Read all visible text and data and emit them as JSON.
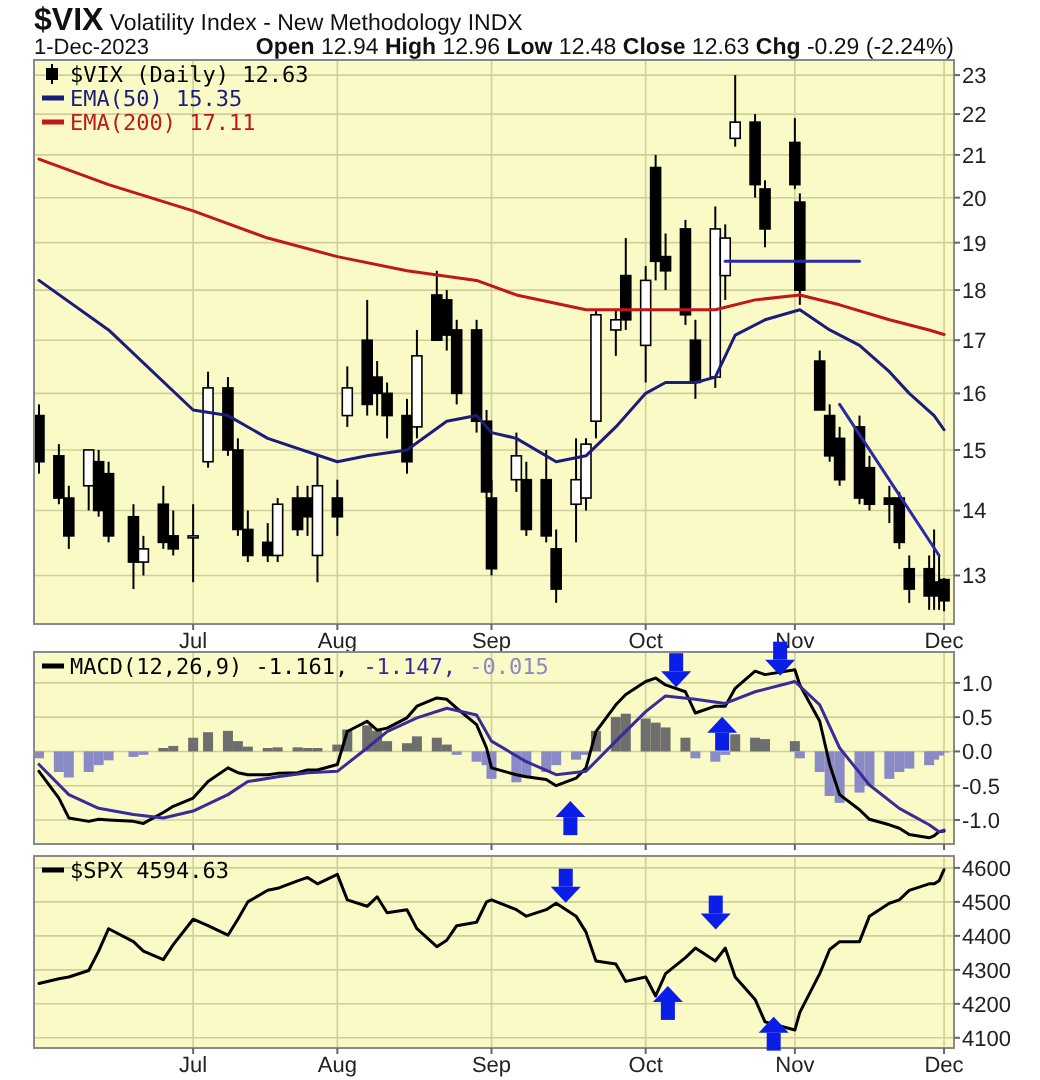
{
  "chart_data": [
    {
      "type": "candlestick",
      "title": "$VIX Volatility Index - New Methodology INDX",
      "subtitle": "1-Dec-2023",
      "annotations": [
        "Open 12.94 High 12.96 Low 12.48 Close 12.63 Chg -0.29 (-2.24%)"
      ],
      "x": [
        "2023-06-02",
        "2023-06-06",
        "2023-06-08",
        "2023-06-12",
        "2023-06-14",
        "2023-06-16",
        "2023-06-21",
        "2023-06-23",
        "2023-06-27",
        "2023-06-29",
        "2023-07-03",
        "2023-07-06",
        "2023-07-10",
        "2023-07-12",
        "2023-07-14",
        "2023-07-18",
        "2023-07-20",
        "2023-07-24",
        "2023-07-26",
        "2023-07-28",
        "2023-08-01",
        "2023-08-03",
        "2023-08-07",
        "2023-08-09",
        "2023-08-11",
        "2023-08-15",
        "2023-08-17",
        "2023-08-21",
        "2023-08-23",
        "2023-08-25",
        "2023-08-29",
        "2023-08-31",
        "2023-09-01",
        "2023-09-06",
        "2023-09-08",
        "2023-09-12",
        "2023-09-14",
        "2023-09-18",
        "2023-09-20",
        "2023-09-22",
        "2023-09-26",
        "2023-09-28",
        "2023-10-02",
        "2023-10-04",
        "2023-10-06",
        "2023-10-10",
        "2023-10-12",
        "2023-10-16",
        "2023-10-18",
        "2023-10-20",
        "2023-10-24",
        "2023-10-26",
        "2023-11-01",
        "2023-11-02",
        "2023-11-06",
        "2023-11-08",
        "2023-11-10",
        "2023-11-14",
        "2023-11-16",
        "2023-11-20",
        "2023-11-22",
        "2023-11-24",
        "2023-11-28",
        "2023-11-29",
        "2023-11-30",
        "2023-12-01"
      ],
      "xticks": [
        {
          "value": "2023-07-03",
          "label": "Jul"
        },
        {
          "value": "2023-08-01",
          "label": "Aug"
        },
        {
          "value": "2023-09-01",
          "label": "Sep"
        },
        {
          "value": "2023-10-02",
          "label": "Oct"
        },
        {
          "value": "2023-11-01",
          "label": "Nov"
        },
        {
          "value": "2023-12-01",
          "label": "Dec"
        }
      ],
      "xlim": [
        "2023-06-01",
        "2023-12-03"
      ],
      "log": true,
      "ylim": [
        12.3,
        23.4
      ],
      "yticks": [
        13,
        14,
        15,
        16,
        17,
        18,
        19,
        20,
        21,
        22,
        23
      ],
      "grid": true,
      "legend": "top left",
      "series": [
        {
          "name": "$VIX (Daily) 12.63",
          "color": "#000000",
          "ohlc": [
            [
              15.6,
              15.8,
              14.6,
              14.8
            ],
            [
              14.9,
              15.1,
              14.1,
              14.2
            ],
            [
              14.2,
              14.4,
              13.4,
              13.6
            ],
            [
              14.4,
              15.0,
              14.0,
              15.0
            ],
            [
              14.8,
              15.0,
              13.9,
              14.0
            ],
            [
              14.6,
              14.8,
              13.5,
              13.6
            ],
            [
              13.9,
              14.1,
              12.8,
              13.2
            ],
            [
              13.2,
              13.6,
              13.0,
              13.4
            ],
            [
              14.1,
              14.4,
              13.4,
              13.5
            ],
            [
              13.6,
              14.0,
              13.3,
              13.4
            ],
            [
              13.6,
              14.1,
              12.9,
              13.6
            ],
            [
              14.8,
              16.4,
              14.7,
              16.1
            ],
            [
              16.1,
              16.3,
              14.9,
              15.0
            ],
            [
              15.0,
              15.2,
              13.6,
              13.7
            ],
            [
              13.7,
              14.0,
              13.2,
              13.3
            ],
            [
              13.5,
              13.8,
              13.2,
              13.3
            ],
            [
              13.3,
              14.2,
              13.2,
              14.1
            ],
            [
              14.2,
              14.4,
              13.6,
              13.7
            ],
            [
              14.2,
              14.4,
              13.6,
              13.9
            ],
            [
              13.3,
              14.9,
              12.9,
              14.4
            ],
            [
              14.2,
              14.5,
              13.6,
              13.9
            ],
            [
              15.6,
              16.5,
              15.4,
              16.1
            ],
            [
              17.0,
              17.8,
              15.6,
              15.8
            ],
            [
              16.3,
              16.6,
              15.6,
              16.0
            ],
            [
              16.0,
              16.2,
              15.2,
              15.6
            ],
            [
              15.6,
              15.9,
              14.6,
              14.8
            ],
            [
              15.4,
              17.2,
              15.2,
              16.7
            ],
            [
              17.9,
              18.4,
              17.0,
              17.0
            ],
            [
              17.8,
              18.0,
              16.8,
              17.1
            ],
            [
              17.2,
              17.4,
              15.8,
              16.0
            ],
            [
              17.2,
              17.4,
              15.3,
              15.5
            ],
            [
              15.5,
              15.7,
              14.2,
              14.3
            ],
            [
              14.2,
              14.5,
              13.0,
              13.1
            ],
            [
              14.5,
              15.3,
              14.3,
              14.9
            ],
            [
              14.5,
              14.8,
              13.6,
              13.7
            ],
            [
              14.5,
              15.0,
              13.5,
              13.6
            ],
            [
              13.4,
              13.7,
              12.6,
              12.8
            ],
            [
              14.1,
              15.2,
              13.5,
              14.5
            ],
            [
              14.2,
              15.2,
              14.0,
              15.1
            ],
            [
              15.5,
              17.6,
              15.2,
              17.5
            ],
            [
              17.2,
              17.6,
              16.7,
              17.4
            ],
            [
              18.3,
              19.1,
              17.2,
              17.4
            ],
            [
              16.9,
              18.5,
              16.2,
              18.2
            ],
            [
              20.7,
              21.0,
              18.2,
              18.6
            ],
            [
              18.7,
              19.2,
              18.0,
              18.4
            ],
            [
              19.3,
              19.5,
              17.3,
              17.5
            ],
            [
              17.0,
              17.4,
              15.9,
              16.2
            ],
            [
              16.3,
              19.8,
              16.1,
              19.3
            ],
            [
              18.3,
              19.4,
              17.8,
              19.1
            ],
            [
              21.4,
              23.0,
              21.2,
              21.8
            ],
            [
              21.8,
              22.0,
              20.0,
              20.3
            ],
            [
              20.2,
              20.4,
              18.9,
              19.3
            ],
            [
              21.3,
              21.9,
              20.2,
              20.3
            ],
            [
              19.9,
              20.1,
              17.7,
              18.0
            ],
            [
              16.6,
              16.8,
              15.7,
              15.7
            ],
            [
              15.6,
              15.8,
              14.8,
              14.9
            ],
            [
              15.2,
              15.4,
              14.4,
              14.5
            ],
            [
              15.4,
              15.6,
              14.1,
              14.2
            ],
            [
              14.7,
              14.9,
              14.0,
              14.1
            ],
            [
              14.2,
              14.4,
              13.8,
              14.1
            ],
            [
              14.2,
              14.3,
              13.4,
              13.5
            ],
            [
              13.1,
              13.3,
              12.6,
              12.8
            ],
            [
              13.1,
              13.3,
              12.5,
              12.7
            ],
            [
              12.9,
              13.7,
              12.5,
              12.8
            ],
            [
              12.9,
              13.3,
              12.5,
              12.7
            ],
            [
              12.94,
              12.96,
              12.48,
              12.63
            ]
          ]
        },
        {
          "type": "line",
          "name": "EMA(50) 15.35",
          "color": "#1c1c7a",
          "x": [
            "2023-06-02",
            "2023-06-16",
            "2023-07-03",
            "2023-07-10",
            "2023-07-18",
            "2023-08-01",
            "2023-08-07",
            "2023-08-15",
            "2023-08-23",
            "2023-08-29",
            "2023-09-01",
            "2023-09-06",
            "2023-09-14",
            "2023-09-20",
            "2023-09-26",
            "2023-10-02",
            "2023-10-06",
            "2023-10-12",
            "2023-10-16",
            "2023-10-20",
            "2023-10-26",
            "2023-11-02",
            "2023-11-08",
            "2023-11-14",
            "2023-11-20",
            "2023-11-24",
            "2023-11-29",
            "2023-12-01"
          ],
          "values": [
            18.2,
            17.2,
            15.7,
            15.6,
            15.2,
            14.8,
            14.9,
            15.0,
            15.5,
            15.6,
            15.3,
            15.2,
            14.8,
            14.9,
            15.4,
            16.0,
            16.2,
            16.2,
            16.3,
            17.1,
            17.4,
            17.6,
            17.2,
            16.9,
            16.4,
            16.0,
            15.6,
            15.35
          ]
        },
        {
          "type": "line",
          "name": "EMA(200) 17.11",
          "color": "#c01818",
          "x": [
            "2023-06-02",
            "2023-06-16",
            "2023-07-03",
            "2023-07-18",
            "2023-08-01",
            "2023-08-15",
            "2023-08-29",
            "2023-09-06",
            "2023-09-20",
            "2023-10-02",
            "2023-10-16",
            "2023-10-24",
            "2023-11-02",
            "2023-11-10",
            "2023-11-20",
            "2023-11-28",
            "2023-12-01"
          ],
          "values": [
            20.9,
            20.3,
            19.7,
            19.1,
            18.7,
            18.4,
            18.2,
            17.9,
            17.6,
            17.6,
            17.6,
            17.8,
            17.9,
            17.7,
            17.4,
            17.2,
            17.11
          ]
        },
        {
          "type": "line",
          "color": "#2a2aa8",
          "x": [
            "2023-10-18",
            "2023-11-14"
          ],
          "values": [
            18.6,
            18.6
          ]
        },
        {
          "type": "line",
          "color": "#2a2aa8",
          "x": [
            "2023-11-10",
            "2023-11-30"
          ],
          "values": [
            15.8,
            13.3
          ]
        }
      ]
    },
    {
      "type": "line",
      "tick_labels": "y",
      "grid": true,
      "legend": "top left",
      "xlim": [
        "2023-06-01",
        "2023-12-03"
      ],
      "x": [
        "2023-06-02",
        "2023-06-06",
        "2023-06-08",
        "2023-06-12",
        "2023-06-14",
        "2023-06-16",
        "2023-06-21",
        "2023-06-23",
        "2023-06-27",
        "2023-06-29",
        "2023-07-03",
        "2023-07-06",
        "2023-07-10",
        "2023-07-12",
        "2023-07-14",
        "2023-07-18",
        "2023-07-20",
        "2023-07-24",
        "2023-07-26",
        "2023-07-28",
        "2023-08-01",
        "2023-08-03",
        "2023-08-07",
        "2023-08-09",
        "2023-08-11",
        "2023-08-15",
        "2023-08-17",
        "2023-08-21",
        "2023-08-23",
        "2023-08-25",
        "2023-08-29",
        "2023-08-31",
        "2023-09-01",
        "2023-09-06",
        "2023-09-08",
        "2023-09-12",
        "2023-09-14",
        "2023-09-18",
        "2023-09-20",
        "2023-09-22",
        "2023-09-26",
        "2023-09-28",
        "2023-10-02",
        "2023-10-04",
        "2023-10-06",
        "2023-10-10",
        "2023-10-12",
        "2023-10-16",
        "2023-10-18",
        "2023-10-20",
        "2023-10-24",
        "2023-10-26",
        "2023-11-01",
        "2023-11-02",
        "2023-11-06",
        "2023-11-08",
        "2023-11-10",
        "2023-11-14",
        "2023-11-16",
        "2023-11-20",
        "2023-11-22",
        "2023-11-24",
        "2023-11-28",
        "2023-11-29",
        "2023-11-30",
        "2023-12-01"
      ],
      "xticks": [
        {
          "value": "2023-07-03",
          "label": null
        },
        {
          "value": "2023-08-01",
          "label": null
        },
        {
          "value": "2023-09-01",
          "label": null
        },
        {
          "value": "2023-10-02",
          "label": null
        },
        {
          "value": "2023-11-01",
          "label": null
        },
        {
          "value": "2023-12-01",
          "label": null
        }
      ],
      "ylim": [
        -1.35,
        1.45
      ],
      "yticks": [
        {
          "value": -1,
          "label": "-1.0"
        },
        {
          "value": -0.5,
          "label": "-0.5"
        },
        {
          "value": 0,
          "label": "0.0"
        },
        {
          "value": 0.5,
          "label": "0.5"
        },
        {
          "value": 1,
          "label": "1.0"
        }
      ],
      "series": [
        {
          "name": "MACD(12,26,9) -1.161,",
          "color": "#000000",
          "values": [
            -0.29,
            -0.68,
            -0.97,
            -1.02,
            -0.99,
            -1.0,
            -1.02,
            -1.05,
            -0.89,
            -0.8,
            -0.68,
            -0.44,
            -0.24,
            -0.31,
            -0.34,
            -0.34,
            -0.32,
            -0.31,
            -0.27,
            -0.27,
            -0.19,
            0.29,
            0.44,
            0.31,
            0.34,
            0.49,
            0.66,
            0.78,
            0.76,
            0.63,
            0.39,
            0.05,
            -0.24,
            -0.34,
            -0.37,
            -0.41,
            -0.5,
            -0.39,
            -0.24,
            0.29,
            0.68,
            0.83,
            1.02,
            1.07,
            0.97,
            0.87,
            0.56,
            0.66,
            0.66,
            0.92,
            1.17,
            1.12,
            1.19,
            0.97,
            0.44,
            -0.19,
            -0.63,
            -0.85,
            -0.99,
            -1.07,
            -1.12,
            -1.21,
            -1.26,
            -1.23,
            -1.17,
            -1.161
          ]
        },
        {
          "name": "-1.147,",
          "color": "#3a2a9a",
          "x": [
            "2023-06-02",
            "2023-06-08",
            "2023-06-14",
            "2023-06-21",
            "2023-06-27",
            "2023-07-03",
            "2023-07-10",
            "2023-07-14",
            "2023-07-20",
            "2023-07-26",
            "2023-08-01",
            "2023-08-07",
            "2023-08-11",
            "2023-08-17",
            "2023-08-23",
            "2023-08-29",
            "2023-09-01",
            "2023-09-08",
            "2023-09-14",
            "2023-09-20",
            "2023-09-26",
            "2023-10-02",
            "2023-10-06",
            "2023-10-12",
            "2023-10-18",
            "2023-10-24",
            "2023-11-01",
            "2023-11-06",
            "2023-11-10",
            "2023-11-16",
            "2023-11-22",
            "2023-11-28",
            "2023-11-30",
            "2023-12-01"
          ],
          "values": [
            -0.19,
            -0.63,
            -0.83,
            -0.92,
            -0.97,
            -0.87,
            -0.63,
            -0.44,
            -0.37,
            -0.31,
            -0.29,
            0.05,
            0.29,
            0.49,
            0.63,
            0.53,
            0.15,
            -0.15,
            -0.34,
            -0.29,
            0.15,
            0.58,
            0.81,
            0.76,
            0.7,
            0.87,
            1.02,
            0.68,
            0.05,
            -0.49,
            -0.83,
            -1.07,
            -1.17,
            -1.147
          ]
        },
        {
          "type": "bar",
          "name": "-0.015",
          "values": [
            -0.1,
            -0.3,
            -0.38,
            -0.3,
            -0.2,
            -0.13,
            -0.08,
            -0.05,
            0.05,
            0.08,
            0.2,
            0.28,
            0.3,
            0.15,
            0.07,
            0.05,
            0.06,
            0.06,
            0.05,
            0.05,
            0.1,
            0.32,
            0.38,
            0.3,
            0.15,
            0.12,
            0.22,
            0.2,
            0.1,
            -0.05,
            -0.15,
            -0.2,
            -0.4,
            -0.45,
            -0.38,
            -0.3,
            -0.2,
            -0.12,
            -0.05,
            0.3,
            0.5,
            0.55,
            0.48,
            0.42,
            0.35,
            0.2,
            -0.1,
            -0.15,
            -0.05,
            0.25,
            0.2,
            0.18,
            0.15,
            -0.1,
            -0.3,
            -0.65,
            -0.75,
            -0.6,
            -0.5,
            -0.4,
            -0.3,
            -0.25,
            -0.2,
            -0.12,
            -0.06,
            -0.015
          ],
          "colors": [
            "#8a8ac6",
            "#8a8ac6",
            "#8a8ac6",
            "#8a8ac6",
            "#8a8ac6",
            "#8a8ac6",
            "#8a8ac6",
            "#8a8ac6",
            "#6e6e6e",
            "#6e6e6e",
            "#6e6e6e",
            "#6e6e6e",
            "#6e6e6e",
            "#6e6e6e",
            "#6e6e6e",
            "#6e6e6e",
            "#6e6e6e",
            "#6e6e6e",
            "#6e6e6e",
            "#6e6e6e",
            "#6e6e6e",
            "#6e6e6e",
            "#6e6e6e",
            "#6e6e6e",
            "#6e6e6e",
            "#6e6e6e",
            "#6e6e6e",
            "#6e6e6e",
            "#6e6e6e",
            "#8a8ac6",
            "#8a8ac6",
            "#8a8ac6",
            "#8a8ac6",
            "#8a8ac6",
            "#8a8ac6",
            "#8a8ac6",
            "#8a8ac6",
            "#8a8ac6",
            "#8a8ac6",
            "#6e6e6e",
            "#6e6e6e",
            "#6e6e6e",
            "#6e6e6e",
            "#6e6e6e",
            "#6e6e6e",
            "#6e6e6e",
            "#8a8ac6",
            "#8a8ac6",
            "#8a8ac6",
            "#6e6e6e",
            "#6e6e6e",
            "#6e6e6e",
            "#6e6e6e",
            "#8a8ac6",
            "#8a8ac6",
            "#8a8ac6",
            "#8a8ac6",
            "#8a8ac6",
            "#8a8ac6",
            "#8a8ac6",
            "#8a8ac6",
            "#8a8ac6",
            "#8a8ac6",
            "#8a8ac6",
            "#8a8ac6",
            "#8a8ac6"
          ]
        }
      ]
    },
    {
      "type": "line",
      "grid": true,
      "legend": "top left",
      "xlim": [
        "2023-06-01",
        "2023-12-03"
      ],
      "x": [
        "2023-06-02",
        "2023-06-06",
        "2023-06-08",
        "2023-06-12",
        "2023-06-14",
        "2023-06-16",
        "2023-06-21",
        "2023-06-23",
        "2023-06-27",
        "2023-06-29",
        "2023-07-03",
        "2023-07-06",
        "2023-07-10",
        "2023-07-12",
        "2023-07-14",
        "2023-07-18",
        "2023-07-20",
        "2023-07-24",
        "2023-07-26",
        "2023-07-28",
        "2023-08-01",
        "2023-08-03",
        "2023-08-07",
        "2023-08-09",
        "2023-08-11",
        "2023-08-15",
        "2023-08-17",
        "2023-08-21",
        "2023-08-23",
        "2023-08-25",
        "2023-08-29",
        "2023-08-31",
        "2023-09-01",
        "2023-09-06",
        "2023-09-08",
        "2023-09-12",
        "2023-09-14",
        "2023-09-18",
        "2023-09-20",
        "2023-09-22",
        "2023-09-26",
        "2023-09-28",
        "2023-10-02",
        "2023-10-04",
        "2023-10-06",
        "2023-10-10",
        "2023-10-12",
        "2023-10-16",
        "2023-10-18",
        "2023-10-20",
        "2023-10-24",
        "2023-10-26",
        "2023-11-01",
        "2023-11-02",
        "2023-11-06",
        "2023-11-08",
        "2023-11-10",
        "2023-11-14",
        "2023-11-16",
        "2023-11-20",
        "2023-11-22",
        "2023-11-24",
        "2023-11-28",
        "2023-11-29",
        "2023-11-30",
        "2023-12-01"
      ],
      "xticks": [
        {
          "value": "2023-07-03",
          "label": "Jul"
        },
        {
          "value": "2023-08-01",
          "label": "Aug"
        },
        {
          "value": "2023-09-01",
          "label": "Sep"
        },
        {
          "value": "2023-10-02",
          "label": "Oct"
        },
        {
          "value": "2023-11-01",
          "label": "Nov"
        },
        {
          "value": "2023-12-01",
          "label": "Dec"
        }
      ],
      "ylim": [
        4070,
        4635
      ],
      "yticks": [
        4100,
        4200,
        4300,
        4400,
        4500,
        4600
      ],
      "series": [
        {
          "name": "$SPX 4594.63",
          "color": "#000000",
          "values": [
            4260,
            4274,
            4279,
            4298,
            4355,
            4421,
            4383,
            4355,
            4330,
            4374,
            4449,
            4430,
            4402,
            4449,
            4500,
            4534,
            4540,
            4562,
            4572,
            4553,
            4581,
            4506,
            4487,
            4515,
            4468,
            4477,
            4421,
            4368,
            4387,
            4430,
            4440,
            4500,
            4506,
            4477,
            4458,
            4477,
            4496,
            4458,
            4411,
            4326,
            4317,
            4266,
            4279,
            4223,
            4289,
            4336,
            4364,
            4326,
            4364,
            4279,
            4213,
            4147,
            4123,
            4175,
            4289,
            4360,
            4383,
            4383,
            4458,
            4496,
            4506,
            4534,
            4553,
            4553,
            4562,
            4594.63
          ]
        }
      ]
    }
  ]
}
